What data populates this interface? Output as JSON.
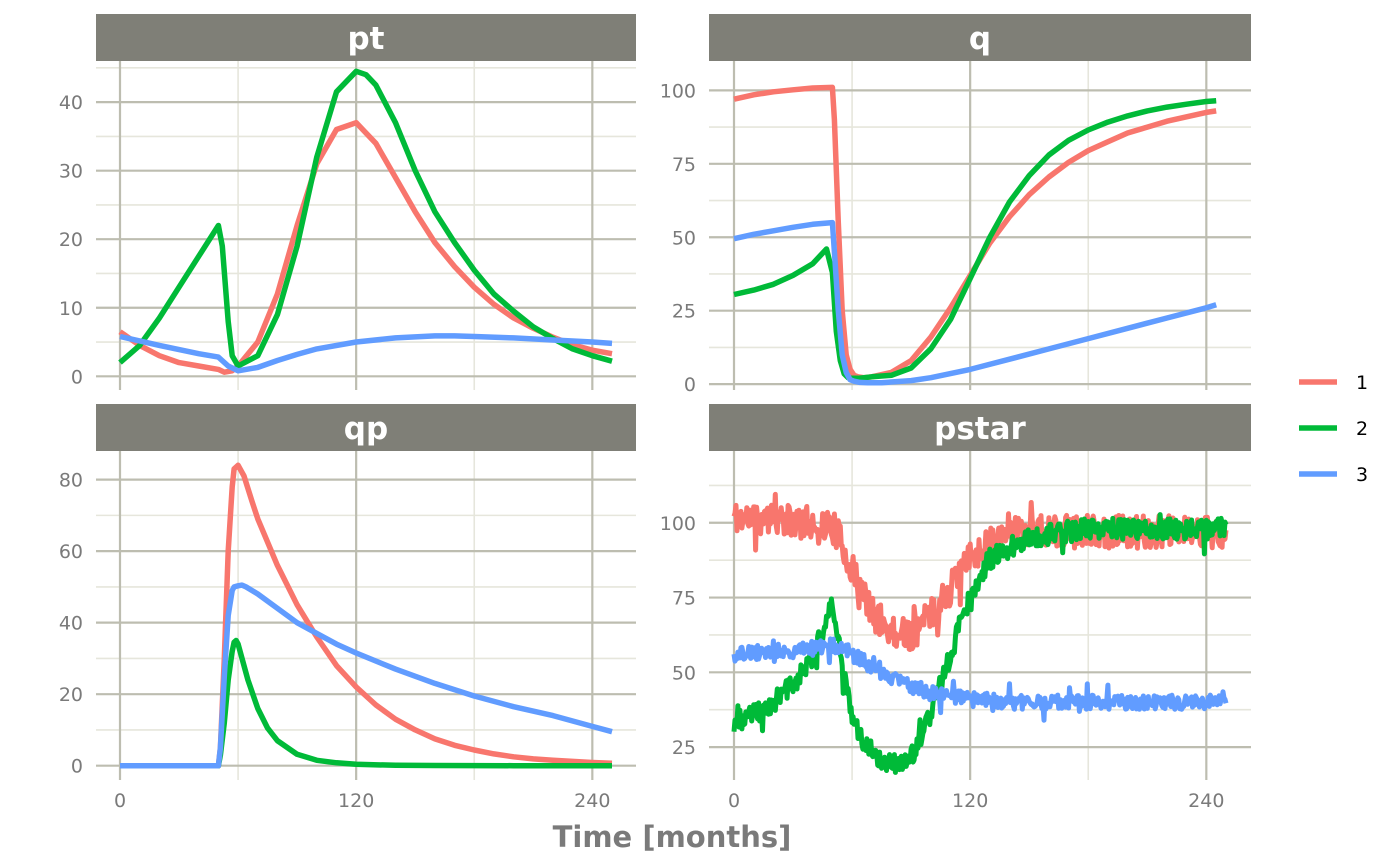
{
  "chart_data": {
    "type": "line",
    "layout": "facet-grid",
    "xlabel": "Time [months]",
    "x_range": [
      0,
      250
    ],
    "x_ticks": [
      0,
      120,
      240
    ],
    "legend": {
      "position": "right",
      "entries": [
        {
          "name": "1",
          "color": "#F8766D"
        },
        {
          "name": "2",
          "color": "#00BA38"
        },
        {
          "name": "3",
          "color": "#619CFF"
        }
      ]
    },
    "panels": [
      {
        "title": "pt",
        "ylim": [
          -2,
          46
        ],
        "y_ticks": [
          0,
          10,
          20,
          30,
          40
        ],
        "series": [
          {
            "name": "1",
            "x": [
              0,
              10,
              20,
              30,
              40,
              50,
              53,
              57,
              60,
              70,
              80,
              90,
              100,
              110,
              120,
              130,
              140,
              150,
              160,
              170,
              180,
              190,
              200,
              210,
              220,
              230,
              240,
              250
            ],
            "y": [
              6.5,
              4.5,
              3,
              2,
              1.5,
              1,
              0.6,
              0.8,
              1.5,
              5,
              12,
              22,
              31,
              36,
              37,
              34,
              29,
              24,
              19.5,
              16,
              13,
              10.5,
              8.5,
              7,
              5.7,
              4.6,
              3.8,
              3.3
            ]
          },
          {
            "name": "2",
            "x": [
              0,
              10,
              20,
              30,
              40,
              50,
              52,
              55,
              57,
              60,
              70,
              80,
              90,
              100,
              110,
              120,
              125,
              130,
              140,
              150,
              160,
              170,
              180,
              190,
              200,
              210,
              220,
              230,
              240,
              250
            ],
            "y": [
              2,
              4.5,
              8.5,
              13,
              17.5,
              22,
              19,
              8,
              3,
              1.5,
              3,
              9,
              19,
              32,
              41.5,
              44.5,
              44,
              42.5,
              37,
              30,
              24,
              19.5,
              15.5,
              12,
              9.5,
              7.2,
              5.5,
              4,
              3,
              2.2
            ]
          },
          {
            "name": "3",
            "x": [
              0,
              20,
              40,
              50,
              55,
              60,
              70,
              80,
              90,
              100,
              120,
              140,
              160,
              170,
              180,
              200,
              220,
              240,
              250
            ],
            "y": [
              5.8,
              4.5,
              3.3,
              2.8,
              1.5,
              0.8,
              1.3,
              2.3,
              3.2,
              4,
              5,
              5.6,
              5.9,
              5.9,
              5.8,
              5.6,
              5.3,
              5,
              4.8
            ]
          }
        ]
      },
      {
        "title": "q",
        "ylim": [
          -2,
          110
        ],
        "y_ticks": [
          0,
          25,
          50,
          75,
          100
        ],
        "series": [
          {
            "name": "1",
            "x": [
              0,
              10,
              20,
              30,
              40,
              50,
              51,
              53,
              55,
              57,
              59,
              61,
              63,
              66,
              70,
              80,
              90,
              100,
              110,
              120,
              130,
              140,
              150,
              160,
              170,
              180,
              190,
              200,
              210,
              220,
              230,
              240,
              245
            ],
            "y": [
              97,
              98.5,
              99.5,
              100.2,
              100.8,
              101,
              90,
              55,
              25,
              10,
              5,
              3,
              2.5,
              2.2,
              2.5,
              4,
              8,
              16,
              26,
              37,
              48,
              57,
              64.5,
              70.5,
              75.5,
              79.5,
              82.5,
              85.5,
              87.5,
              89.5,
              91,
              92.5,
              93
            ]
          },
          {
            "name": "2",
            "x": [
              0,
              10,
              20,
              30,
              40,
              47,
              50,
              52,
              54,
              56,
              58,
              60,
              63,
              66,
              70,
              80,
              90,
              100,
              110,
              120,
              130,
              140,
              150,
              160,
              170,
              180,
              190,
              200,
              210,
              220,
              230,
              240,
              245
            ],
            "y": [
              30.5,
              32,
              34,
              37,
              41,
              46,
              38,
              18,
              8,
              3.5,
              2.2,
              2,
              2,
              2.2,
              2.5,
              3,
              5.5,
              12,
              22,
              36,
              50,
              62,
              71,
              78,
              83,
              86.5,
              89.2,
              91.3,
              93,
              94.3,
              95.3,
              96.2,
              96.5
            ]
          },
          {
            "name": "3",
            "x": [
              0,
              10,
              20,
              30,
              40,
              50,
              51,
              53,
              55,
              57,
              59,
              61,
              64,
              68,
              75,
              90,
              100,
              120,
              140,
              160,
              180,
              200,
              220,
              240,
              245
            ],
            "y": [
              49.5,
              51,
              52.2,
              53.4,
              54.4,
              55,
              45,
              25,
              10,
              4,
              1.5,
              1,
              0.6,
              0.5,
              0.5,
              1.2,
              2.2,
              5,
              8.5,
              12,
              15.5,
              19,
              22.5,
              26,
              27
            ]
          }
        ]
      },
      {
        "title": "qp",
        "ylim": [
          -4,
          88
        ],
        "y_ticks": [
          0,
          20,
          40,
          60,
          80
        ],
        "series": [
          {
            "name": "1",
            "x": [
              0,
              40,
              50,
              51,
              53,
              55,
              57,
              58,
              60,
              63,
              67,
              70,
              80,
              90,
              100,
              110,
              120,
              130,
              140,
              150,
              160,
              170,
              180,
              190,
              200,
              210,
              220,
              230,
              240,
              250
            ],
            "y": [
              0,
              0,
              0,
              5,
              30,
              60,
              78,
              83,
              84,
              81,
              74,
              69,
              56,
              45,
              36,
              28,
              22,
              17,
              13,
              10,
              7.5,
              5.7,
              4.4,
              3.3,
              2.5,
              1.9,
              1.5,
              1.2,
              0.9,
              0.7
            ]
          },
          {
            "name": "2",
            "x": [
              0,
              40,
              50,
              51,
              53,
              55,
              57,
              58,
              59,
              60,
              62,
              65,
              70,
              75,
              80,
              90,
              100,
              110,
              120,
              140,
              160,
              180,
              200,
              220,
              250
            ],
            "y": [
              0,
              0,
              0,
              3,
              12,
              24,
              32,
              34.5,
              35,
              34,
              30,
              24,
              16,
              10.5,
              7,
              3.2,
              1.5,
              0.8,
              0.4,
              0.1,
              0.05,
              0.02,
              0,
              0,
              0
            ]
          },
          {
            "name": "3",
            "x": [
              0,
              40,
              50,
              51,
              53,
              55,
              57,
              58,
              60,
              62,
              64,
              70,
              80,
              90,
              100,
              110,
              120,
              140,
              160,
              180,
              200,
              220,
              240,
              250
            ],
            "y": [
              0,
              0,
              0,
              5,
              25,
              42,
              49,
              50,
              50.3,
              50.5,
              50,
              48,
              44,
              40,
              37,
              34,
              31.5,
              27,
              23,
              19.5,
              16.5,
              14,
              11,
              9.5
            ]
          }
        ]
      },
      {
        "title": "pstar",
        "ylim": [
          14,
          124
        ],
        "y_ticks": [
          25,
          50,
          75,
          100
        ],
        "series": [
          {
            "name": "1",
            "x": [
              0,
              20,
              40,
              50,
              55,
              60,
              65,
              70,
              75,
              80,
              85,
              90,
              100,
              110,
              120,
              130,
              140,
              150,
              160,
              170,
              180,
              190,
              200,
              210,
              220,
              230,
              240,
              250
            ],
            "y": [
              102,
              101,
              100,
              99,
              93,
              84,
              77,
              70,
              66,
              64,
              63,
              63,
              69,
              78,
              88,
              94,
              98,
              98,
              97,
              97,
              97,
              97,
              97,
              97,
              97,
              97,
              97,
              97
            ],
            "noise": 5.5,
            "seed": 11
          },
          {
            "name": "2",
            "x": [
              0,
              10,
              20,
              30,
              40,
              45,
              48,
              50,
              53,
              56,
              60,
              65,
              70,
              75,
              80,
              85,
              90,
              95,
              100,
              105,
              110,
              115,
              120,
              125,
              130,
              140,
              150,
              160,
              170,
              180,
              190,
              200,
              210,
              220,
              230,
              240,
              250
            ],
            "y": [
              33,
              36,
              40,
              46,
              55,
              64,
              70,
              73,
              63,
              48,
              36,
              28,
              24,
              21,
              19,
              19.5,
              22,
              28,
              36,
              46,
              56,
              66,
              75,
              82,
              88,
              92,
              95,
              96,
              97,
              98,
              98,
              98,
              98,
              98,
              98,
              98,
              98
            ],
            "noise": 3.5,
            "seed": 23
          },
          {
            "name": "3",
            "x": [
              0,
              20,
              40,
              50,
              55,
              60,
              70,
              80,
              90,
              100,
              110,
              120,
              130,
              140,
              150,
              160,
              170,
              180,
              200,
              220,
              240,
              250
            ],
            "y": [
              56,
              57,
              58,
              59,
              58,
              56,
              52,
              48,
              45,
              43,
              42,
              41,
              41,
              40,
              40,
              40,
              40,
              40,
              40,
              40,
              40,
              41
            ],
            "noise": 2.4,
            "seed": 37
          }
        ]
      }
    ]
  }
}
